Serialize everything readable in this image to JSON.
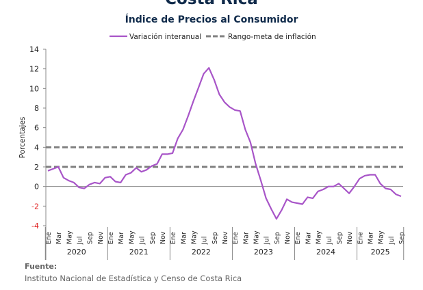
{
  "chart_data": {
    "type": "line",
    "title": "Costa Rica",
    "subtitle": "Índice de Precios al Consumidor",
    "ylabel": "Porcentajes",
    "xlabel": "",
    "ylim": [
      -4,
      14
    ],
    "yticks": [
      14,
      12,
      10,
      8,
      6,
      4,
      2,
      0,
      -2,
      -4
    ],
    "grid": false,
    "legend_position": "top",
    "legend": [
      "Variación interanual",
      "Rango-meta de inflación"
    ],
    "x_month_labels": [
      "Ene",
      "Mar",
      "May",
      "Jul",
      "Sep",
      "Nov",
      "Ene",
      "Mar",
      "May",
      "Jul",
      "Sep",
      "Nov",
      "Ene",
      "Mar",
      "May",
      "Jul",
      "Sep",
      "Nov",
      "Ene",
      "Mar",
      "May",
      "Jul",
      "Sep",
      "Nov",
      "Ene",
      "Mar",
      "May",
      "Jul",
      "Sep",
      "Nov",
      "Ene",
      "Mar",
      "May",
      "Jul",
      "Sep"
    ],
    "x_years": [
      "2020",
      "2021",
      "2022",
      "2023",
      "2024",
      "2025"
    ],
    "series": [
      {
        "name": "Variación interanual",
        "color": "#a855c8",
        "start": "2020-01",
        "values": [
          1.6,
          1.8,
          2.0,
          0.9,
          0.6,
          0.4,
          -0.1,
          -0.2,
          0.2,
          0.4,
          0.3,
          0.9,
          1.0,
          0.5,
          0.4,
          1.2,
          1.4,
          1.9,
          1.5,
          1.7,
          2.1,
          2.3,
          3.3,
          3.3,
          3.4,
          4.9,
          5.8,
          7.2,
          8.7,
          10.1,
          11.5,
          12.1,
          10.9,
          9.4,
          8.6,
          8.1,
          7.8,
          7.7,
          5.8,
          4.5,
          2.3,
          0.6,
          -1.2,
          -2.3,
          -3.3,
          -2.4,
          -1.3,
          -1.6,
          -1.7,
          -1.8,
          -1.1,
          -1.2,
          -0.5,
          -0.3,
          0.0,
          0.0,
          0.3,
          -0.2,
          -0.7,
          0.0,
          0.8,
          1.1,
          1.2,
          1.2,
          0.3,
          -0.2,
          -0.3,
          -0.8,
          -1.0
        ]
      },
      {
        "name": "Rango-meta de inflación",
        "color": "#808080",
        "lines": [
          2,
          4
        ]
      }
    ],
    "negative_tick_color": "#e02020"
  },
  "source": {
    "label": "Fuente:",
    "text": "Instituto Nacional de Estadística y Censo de Costa Rica"
  }
}
